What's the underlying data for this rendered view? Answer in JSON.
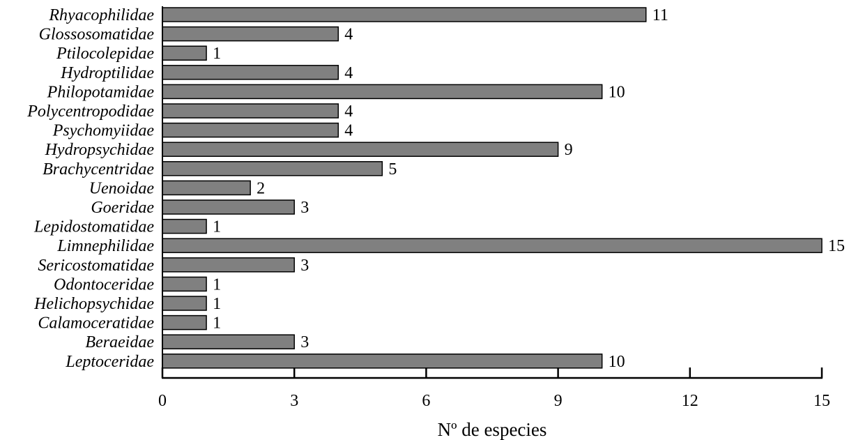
{
  "chart_data": {
    "type": "bar",
    "orientation": "horizontal",
    "categories": [
      "Rhyacophilidae",
      "Glossosomatidae",
      "Ptilocolepidae",
      "Hydroptilidae",
      "Philopotamidae",
      "Polycentropodidae",
      "Psychomyiidae",
      "Hydropsychidae",
      "Brachycentridae",
      "Uenoidae",
      "Goeridae",
      "Lepidostomatidae",
      "Limnephilidae",
      "Sericostomatidae",
      "Odontoceridae",
      "Helichopsychidae",
      "Calamoceratidae",
      "Beraeidae",
      "Leptoceridae"
    ],
    "values": [
      11,
      4,
      1,
      4,
      10,
      4,
      4,
      9,
      5,
      2,
      3,
      1,
      15,
      3,
      1,
      1,
      1,
      3,
      10
    ],
    "xlabel": "Nº de especies",
    "ylabel": "",
    "xlim": [
      0,
      15
    ],
    "xticks": [
      0,
      3,
      6,
      9,
      12,
      15
    ],
    "bar_color": "#808080",
    "grid": false,
    "legend": "none"
  }
}
